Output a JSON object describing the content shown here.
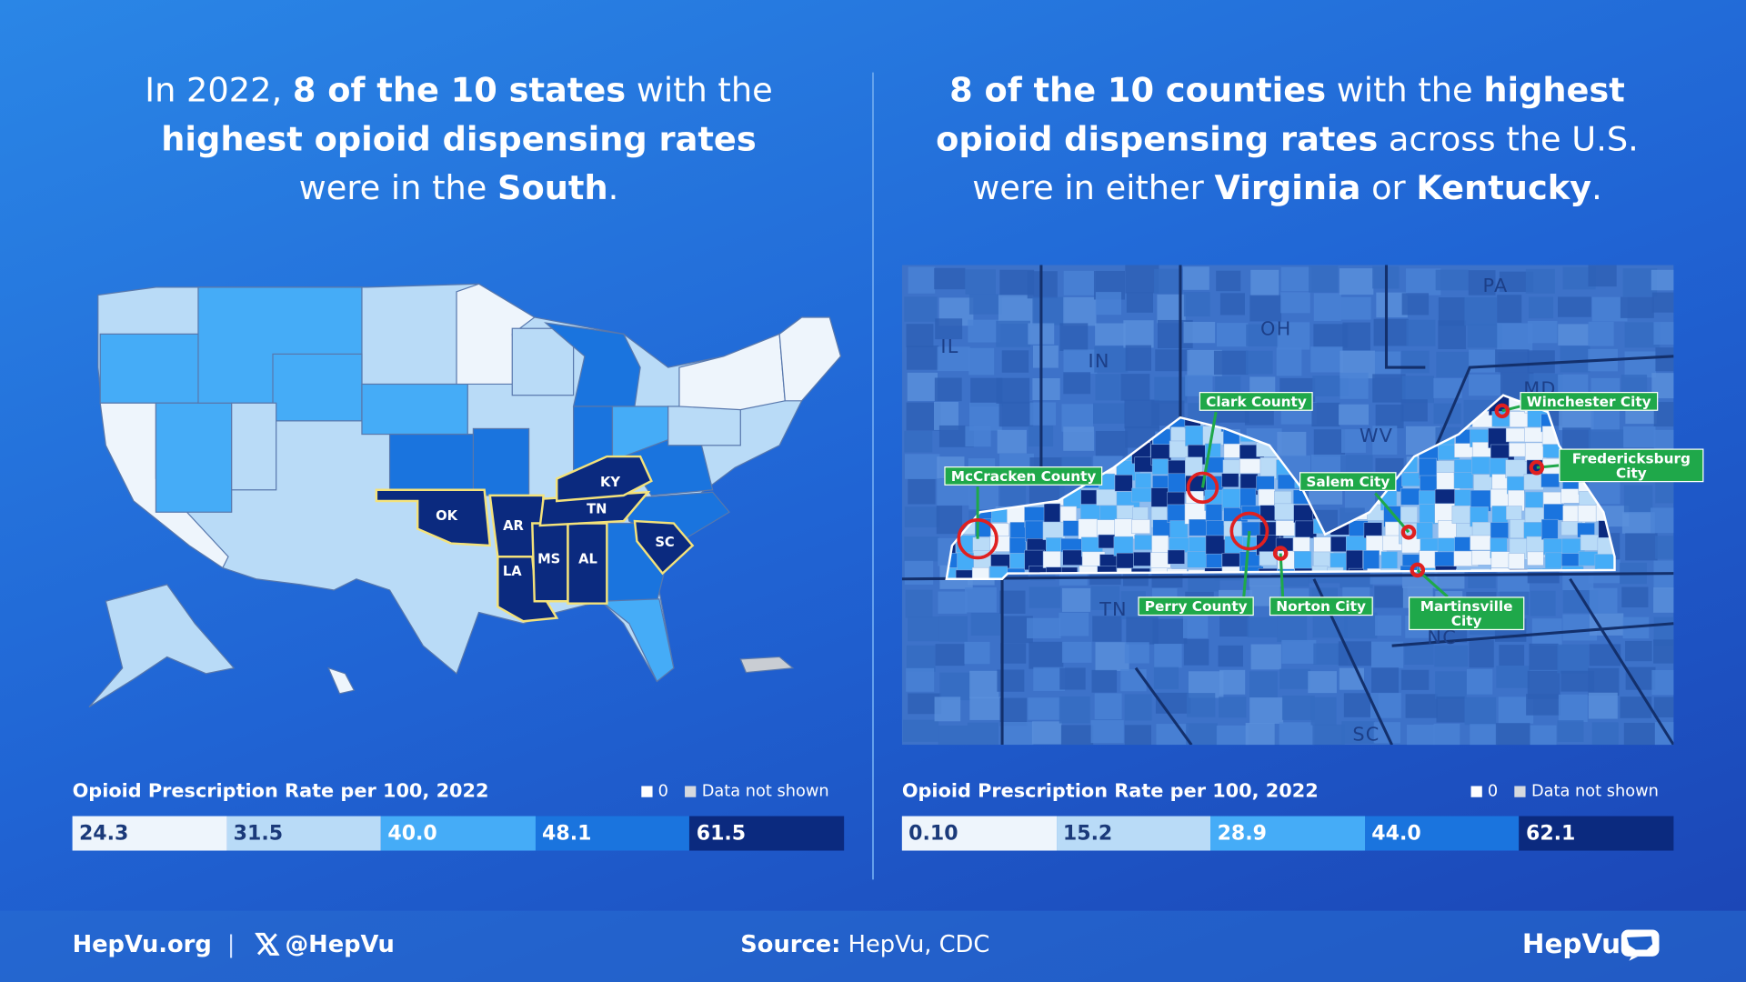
{
  "left": {
    "title_lines": [
      [
        {
          "text": "In 2022, ",
          "bold": false
        },
        {
          "text": "8 of the 10 states",
          "bold": true
        },
        {
          "text": " with the",
          "bold": false
        }
      ],
      [
        {
          "text": "highest opioid dispensing rates",
          "bold": true
        }
      ],
      [
        {
          "text": "were in the ",
          "bold": false
        },
        {
          "text": "South",
          "bold": true
        },
        {
          "text": ".",
          "bold": false
        }
      ]
    ],
    "map": {
      "labels": [
        "OK",
        "AR",
        "LA",
        "MS",
        "AL",
        "TN",
        "KY",
        "SC"
      ]
    },
    "legend": {
      "title": "Opioid Prescription Rate per 100, 2022",
      "zero": "0",
      "not_shown": "Data not shown",
      "bins": [
        {
          "label": "24.3",
          "color": "#eef5fc"
        },
        {
          "label": "31.5",
          "color": "#b9dbf7"
        },
        {
          "label": "40.0",
          "color": "#45acf7"
        },
        {
          "label": "48.1",
          "color": "#1a74de"
        },
        {
          "label": "61.5",
          "color": "#0b2a7f"
        }
      ]
    }
  },
  "right": {
    "title_lines": [
      [
        {
          "text": "8 of the 10 counties",
          "bold": true
        },
        {
          "text": " with the ",
          "bold": false
        },
        {
          "text": "highest",
          "bold": true
        }
      ],
      [
        {
          "text": "opioid dispensing rates",
          "bold": true
        },
        {
          "text": " across the U.S.",
          "bold": false
        }
      ],
      [
        {
          "text": "were in either ",
          "bold": false
        },
        {
          "text": "Virginia",
          "bold": true
        },
        {
          "text": " or ",
          "bold": false
        },
        {
          "text": "Kentucky",
          "bold": true
        },
        {
          "text": ".",
          "bold": false
        }
      ]
    ],
    "map": {
      "regions": [
        "IL",
        "IN",
        "OH",
        "PA",
        "WV",
        "MD",
        "TN",
        "NC",
        "SC"
      ],
      "callouts": [
        "McCracken County",
        "Clark County",
        "Salem City",
        "Winchester City",
        "Fredericksburg City",
        "Perry County",
        "Norton City",
        "Martinsville City"
      ]
    },
    "legend": {
      "title": "Opioid Prescription Rate per 100, 2022",
      "zero": "0",
      "not_shown": "Data not shown",
      "bins": [
        {
          "label": "0.10",
          "color": "#eef5fc"
        },
        {
          "label": "15.2",
          "color": "#b9dbf7"
        },
        {
          "label": "28.9",
          "color": "#45acf7"
        },
        {
          "label": "44.0",
          "color": "#1a74de"
        },
        {
          "label": "62.1",
          "color": "#0b2a7f"
        }
      ]
    }
  },
  "footer": {
    "site": "HepVu.org",
    "separator": "|",
    "handle": "@HepVu",
    "source_label": "Source:",
    "source": "HepVu, CDC",
    "logo": "HepVu"
  }
}
